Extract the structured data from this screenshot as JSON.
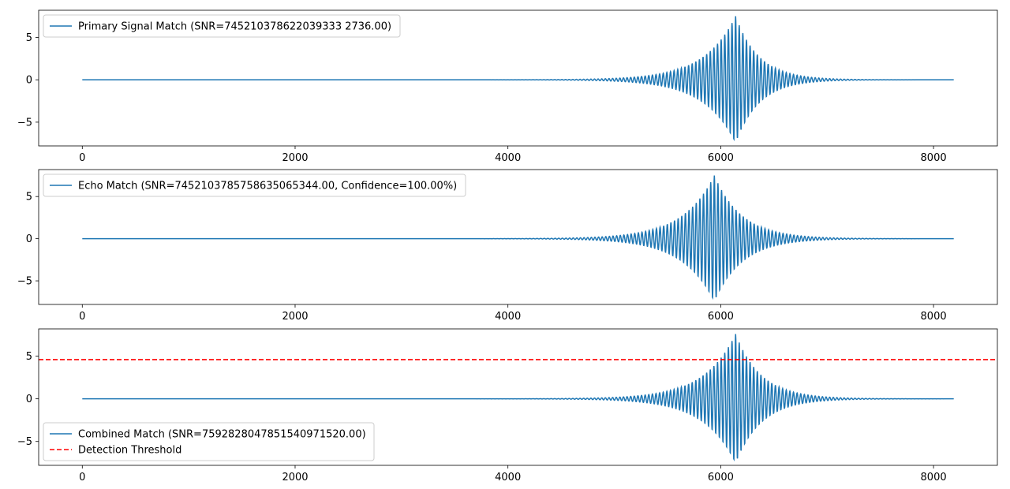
{
  "chart_data": [
    {
      "type": "line",
      "title": "",
      "xlabel": "",
      "ylabel": "",
      "xlim": [
        -410,
        8600
      ],
      "ylim": [
        -7.8,
        8.2
      ],
      "xticks": [
        0,
        2000,
        4000,
        6000,
        8000
      ],
      "yticks": [
        -5,
        0,
        5
      ],
      "legend_position": "upper left",
      "series": [
        {
          "name": "Primary Signal Match (SNR=745210378622039333 2736.00)",
          "color": "#1f77b4",
          "style": "solid",
          "x_range": [
            0,
            8191
          ],
          "peak_x": 6140,
          "peak_amplitude": 7.5,
          "envelope_rise_scale": 300,
          "envelope_fall_scale": 220,
          "oscillation_period": 34
        }
      ]
    },
    {
      "type": "line",
      "title": "",
      "xlabel": "",
      "ylabel": "",
      "xlim": [
        -410,
        8600
      ],
      "ylim": [
        -7.8,
        8.2
      ],
      "xticks": [
        0,
        2000,
        4000,
        6000,
        8000
      ],
      "yticks": [
        -5,
        0,
        5
      ],
      "legend_position": "upper left",
      "series": [
        {
          "name": "Echo Match (SNR=7452103785758635065344.00, Confidence=100.00%)",
          "color": "#1f77b4",
          "style": "solid",
          "x_range": [
            0,
            8191
          ],
          "peak_x": 5940,
          "peak_amplitude": 7.5,
          "envelope_rise_scale": 300,
          "envelope_fall_scale": 260,
          "oscillation_period": 34
        }
      ]
    },
    {
      "type": "line",
      "title": "",
      "xlabel": "",
      "ylabel": "",
      "xlim": [
        -410,
        8600
      ],
      "ylim": [
        -7.8,
        8.2
      ],
      "xticks": [
        0,
        2000,
        4000,
        6000,
        8000
      ],
      "yticks": [
        -5,
        0,
        5
      ],
      "legend_position": "lower left",
      "series": [
        {
          "name": "Combined Match (SNR=7592828047851540971520.00)",
          "color": "#1f77b4",
          "style": "solid",
          "x_range": [
            0,
            8191
          ],
          "peak_x": 6140,
          "peak_amplitude": 7.6,
          "envelope_rise_scale": 300,
          "envelope_fall_scale": 240,
          "oscillation_period": 34
        },
        {
          "name": "Detection Threshold",
          "color": "#ff0000",
          "style": "dashed",
          "y": 4.6
        }
      ]
    }
  ]
}
